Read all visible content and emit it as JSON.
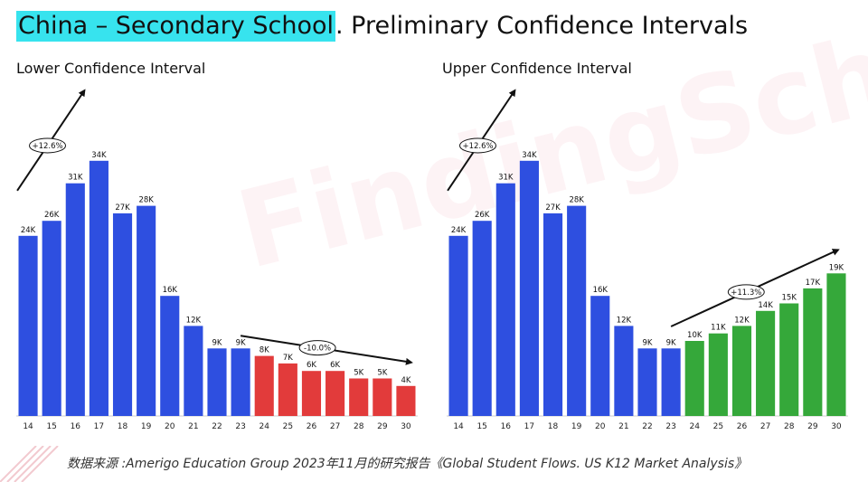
{
  "title": {
    "highlight": "China – Secondary School",
    "rest": ". Preliminary Confidence Intervals"
  },
  "source": "数据来源 :Amerigo Education Group 2023年11月的研究报告《Global Student Flows. US K12 Market Analysis》",
  "watermark": "FindingSchool",
  "colors": {
    "historical": "#2e4fe0",
    "lower_forecast": "#e23b3b",
    "upper_forecast": "#35a83a",
    "accent": "#37e3ee"
  },
  "chart_data": [
    {
      "type": "bar",
      "title": "Lower Confidence Interval",
      "categories": [
        "14",
        "15",
        "16",
        "17",
        "18",
        "19",
        "20",
        "21",
        "22",
        "23",
        "24",
        "25",
        "26",
        "27",
        "28",
        "29",
        "30"
      ],
      "values": [
        24,
        26,
        31,
        34,
        27,
        28,
        16,
        12,
        9,
        9,
        8,
        7,
        6,
        6,
        5,
        5,
        4
      ],
      "labels": [
        "24K",
        "26K",
        "31K",
        "34K",
        "27K",
        "28K",
        "16K",
        "12K",
        "9K",
        "9K",
        "8K",
        "7K",
        "6K",
        "6K",
        "5K",
        "5K",
        "4K"
      ],
      "series_split": {
        "historical_end_index": 9
      },
      "annotations": [
        {
          "text": "+12.6%",
          "trend": "up"
        },
        {
          "text": "-10.0%",
          "trend": "down"
        }
      ]
    },
    {
      "type": "bar",
      "title": "Upper Confidence Interval",
      "categories": [
        "14",
        "15",
        "16",
        "17",
        "18",
        "19",
        "20",
        "21",
        "22",
        "23",
        "24",
        "25",
        "26",
        "27",
        "28",
        "29",
        "30"
      ],
      "values": [
        24,
        26,
        31,
        34,
        27,
        28,
        16,
        12,
        9,
        9,
        10,
        11,
        12,
        14,
        15,
        17,
        19
      ],
      "labels": [
        "24K",
        "26K",
        "31K",
        "34K",
        "27K",
        "28K",
        "16K",
        "12K",
        "9K",
        "9K",
        "10K",
        "11K",
        "12K",
        "14K",
        "15K",
        "17K",
        "19K"
      ],
      "series_split": {
        "historical_end_index": 9
      },
      "annotations": [
        {
          "text": "+12.6%",
          "trend": "up"
        },
        {
          "text": "+11.3%",
          "trend": "up"
        }
      ]
    }
  ]
}
